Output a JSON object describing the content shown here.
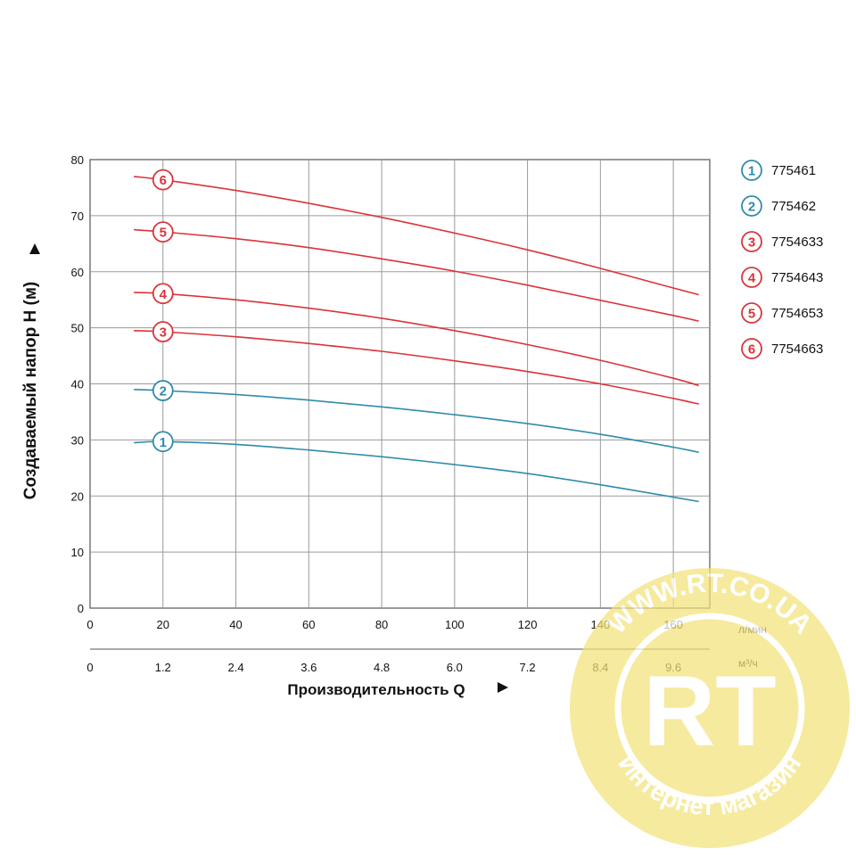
{
  "chart_data": {
    "type": "line",
    "title": "",
    "ylabel": "Создаваемый напор H (м)",
    "xlabel": "Производительность Q",
    "ylim": [
      0,
      80
    ],
    "xlim": [
      0,
      170
    ],
    "grid": true,
    "legend_position": "right",
    "y_ticks": [
      0,
      10,
      20,
      30,
      40,
      50,
      60,
      70,
      80
    ],
    "x_ticks": [
      0,
      20,
      40,
      60,
      80,
      100,
      120,
      140,
      160
    ],
    "x_unit": "л/мин",
    "x2_ticks": [
      "0",
      "1.2",
      "2.4",
      "3.6",
      "4.8",
      "6.0",
      "7.2",
      "8.4",
      "9.6"
    ],
    "x2_unit": "м³/ч",
    "series": [
      {
        "id": "1",
        "name": "775461",
        "color": "#2f8bab",
        "marker_x": 20,
        "points": [
          [
            12,
            29.5
          ],
          [
            20,
            29.7
          ],
          [
            40,
            29.2
          ],
          [
            60,
            28.2
          ],
          [
            80,
            27.0
          ],
          [
            100,
            25.6
          ],
          [
            120,
            24.0
          ],
          [
            140,
            22.0
          ],
          [
            160,
            19.8
          ],
          [
            167,
            19.0
          ]
        ]
      },
      {
        "id": "2",
        "name": "775462",
        "color": "#2f8bab",
        "marker_x": 20,
        "points": [
          [
            12,
            39.0
          ],
          [
            20,
            38.8
          ],
          [
            40,
            38.1
          ],
          [
            60,
            37.1
          ],
          [
            80,
            35.9
          ],
          [
            100,
            34.5
          ],
          [
            120,
            32.9
          ],
          [
            140,
            31.0
          ],
          [
            160,
            28.7
          ],
          [
            167,
            27.8
          ]
        ]
      },
      {
        "id": "3",
        "name": "7754633",
        "color": "#d9343a",
        "marker_x": 20,
        "points": [
          [
            12,
            49.5
          ],
          [
            20,
            49.3
          ],
          [
            40,
            48.4
          ],
          [
            60,
            47.2
          ],
          [
            80,
            45.8
          ],
          [
            100,
            44.1
          ],
          [
            120,
            42.2
          ],
          [
            140,
            40.0
          ],
          [
            160,
            37.4
          ],
          [
            167,
            36.4
          ]
        ]
      },
      {
        "id": "4",
        "name": "7754643",
        "color": "#d9343a",
        "marker_x": 20,
        "points": [
          [
            12,
            56.3
          ],
          [
            20,
            56.1
          ],
          [
            40,
            55.0
          ],
          [
            60,
            53.5
          ],
          [
            80,
            51.7
          ],
          [
            100,
            49.5
          ],
          [
            120,
            47.0
          ],
          [
            140,
            44.2
          ],
          [
            160,
            41.0
          ],
          [
            167,
            39.7
          ]
        ]
      },
      {
        "id": "5",
        "name": "7754653",
        "color": "#d9343a",
        "marker_x": 20,
        "points": [
          [
            12,
            67.5
          ],
          [
            20,
            67.1
          ],
          [
            40,
            65.9
          ],
          [
            60,
            64.3
          ],
          [
            80,
            62.3
          ],
          [
            100,
            60.1
          ],
          [
            120,
            57.6
          ],
          [
            140,
            54.9
          ],
          [
            160,
            52.2
          ],
          [
            167,
            51.2
          ]
        ]
      },
      {
        "id": "6",
        "name": "7754663",
        "color": "#d9343a",
        "marker_x": 20,
        "points": [
          [
            12,
            77.0
          ],
          [
            20,
            76.4
          ],
          [
            40,
            74.5
          ],
          [
            60,
            72.2
          ],
          [
            80,
            69.7
          ],
          [
            100,
            66.9
          ],
          [
            120,
            63.9
          ],
          [
            140,
            60.6
          ],
          [
            160,
            57.1
          ],
          [
            167,
            55.9
          ]
        ]
      }
    ]
  },
  "watermark": {
    "text_top": "WWW.RT.CO.UA",
    "logo": "RT",
    "text_bottom": "Интернет магазин",
    "color": "#f3e27a"
  }
}
